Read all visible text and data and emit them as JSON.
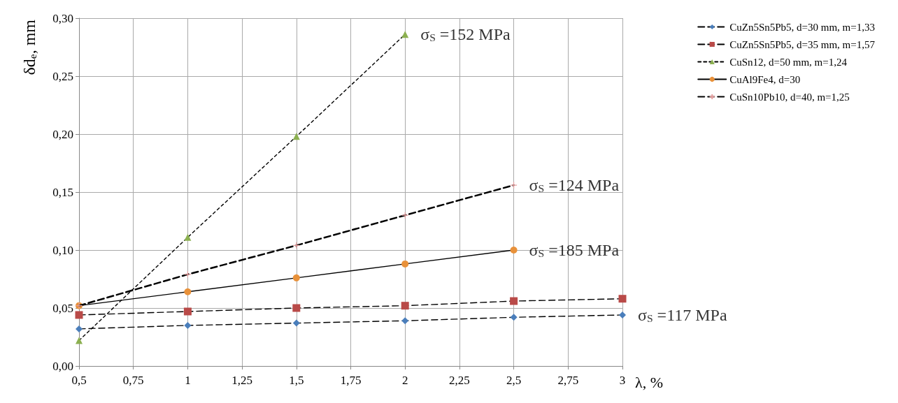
{
  "chart_data": {
    "type": "line",
    "x": [
      0.5,
      1,
      1.5,
      2,
      2.5,
      3
    ],
    "xlabel": "λ, %",
    "ylabel": "δd$_{e}$, mm",
    "xlim": [
      0.5,
      3
    ],
    "xticks": [
      {
        "value": 0.5,
        "label": "0,5"
      },
      {
        "value": 0.75,
        "label": "0,75"
      },
      1,
      {
        "value": 1.25,
        "label": "1,25"
      },
      {
        "value": 1.5,
        "label": "1,5"
      },
      {
        "value": 1.75,
        "label": "1,75"
      },
      2,
      {
        "value": 2.25,
        "label": "2,25"
      },
      {
        "value": 2.5,
        "label": "2,5"
      },
      {
        "value": 2.75,
        "label": "2,75"
      },
      3
    ],
    "ylim": [
      0,
      0.3
    ],
    "yticks": [
      {
        "value": 0,
        "label": "0,00"
      },
      {
        "value": 0.05,
        "label": "0,05"
      },
      {
        "value": 0.1,
        "label": "0,10"
      },
      {
        "value": 0.15,
        "label": "0,15"
      },
      {
        "value": 0.2,
        "label": "0,20"
      },
      {
        "value": 0.25,
        "label": "0,25"
      },
      {
        "value": 0.3,
        "label": "0,30"
      }
    ],
    "grid": true,
    "legend": "right",
    "series": [
      {
        "name": "CuZn5Sn5Pb5, d=30 mm, m=1,33",
        "color": "#4a7ebb",
        "marker": "diamond",
        "line_style": "dashed",
        "values": [
          0.032,
          0.035,
          0.037,
          0.039,
          0.042,
          0.044
        ]
      },
      {
        "name": "CuZn5Sn5Pb5, d=35 mm, m=1,57",
        "color": "#b94a48",
        "marker": "square",
        "line_style": "dashed",
        "values": [
          0.044,
          0.047,
          0.05,
          0.052,
          0.056,
          0.058
        ]
      },
      {
        "name": "CuSn12, d=50 mm, m=1,24",
        "color": "#8cb050",
        "marker": "triangle",
        "line_style": "dotted",
        "values": [
          0.022,
          0.111,
          0.198,
          0.286,
          null,
          null
        ]
      },
      {
        "name": "CuAl9Fe4, d=30",
        "color": "#e8913a",
        "marker": "circle",
        "line_style": "solid",
        "values": [
          0.052,
          0.064,
          0.076,
          0.088,
          0.1,
          null
        ]
      },
      {
        "name": "CuSn10Pb10, d=40, m=1,25",
        "color": "#e8a0a0",
        "marker": "cross",
        "line_style": "dashed",
        "values": [
          0.052,
          0.079,
          0.104,
          0.13,
          0.156,
          null
        ]
      }
    ],
    "annotations": [
      {
        "text": "σ$_{S}$ =152 MPa",
        "x": 2,
        "y": 0.286
      },
      {
        "text": "σ$_{S}$ =124 MPa",
        "x": 2.5,
        "y": 0.156
      },
      {
        "text": "σ$_{S}$ =185 MPa",
        "x": 2.5,
        "y": 0.1
      },
      {
        "text": "σ$_{S}$ =117 MPa",
        "x": 3,
        "y": 0.044
      }
    ]
  }
}
